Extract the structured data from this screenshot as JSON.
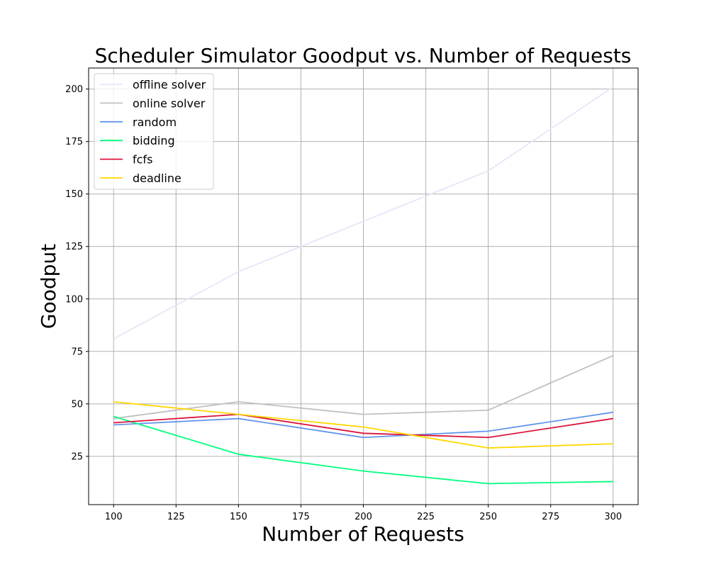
{
  "chart_data": {
    "type": "line",
    "title": "Scheduler Simulator Goodput vs. Number of Requests",
    "xlabel": "Number of Requests",
    "ylabel": "Goodput",
    "x": [
      100,
      150,
      200,
      250,
      300
    ],
    "xlim": [
      90,
      310
    ],
    "ylim": [
      2,
      210
    ],
    "xticks": [
      100,
      125,
      150,
      175,
      200,
      225,
      250,
      275,
      300
    ],
    "yticks": [
      25,
      50,
      75,
      100,
      125,
      150,
      175,
      200
    ],
    "grid": true,
    "legend_position": "top-left",
    "series": [
      {
        "name": "offline solver",
        "color": "#e6e6fa",
        "values": [
          81,
          113,
          137,
          161,
          201
        ]
      },
      {
        "name": "online solver",
        "color": "#c0c0c0",
        "values": [
          43,
          51,
          45,
          47,
          73
        ]
      },
      {
        "name": "random",
        "color": "#6495ed",
        "values": [
          40,
          43,
          34,
          37,
          46
        ]
      },
      {
        "name": "bidding",
        "color": "#00ff7f",
        "values": [
          44,
          26,
          18,
          12,
          13
        ]
      },
      {
        "name": "fcfs",
        "color": "#dc143c",
        "values": [
          41,
          45,
          36,
          34,
          43
        ]
      },
      {
        "name": "deadline",
        "color": "#ffd700",
        "values": [
          51,
          45,
          39,
          29,
          31
        ]
      }
    ]
  }
}
